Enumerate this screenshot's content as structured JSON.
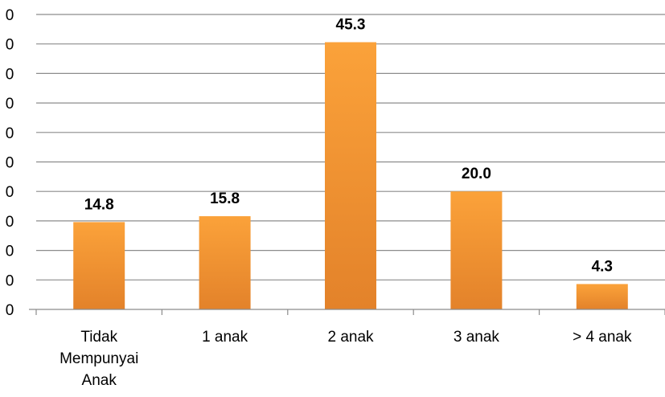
{
  "chart_data": {
    "type": "bar",
    "categories": [
      [
        "Tidak",
        "Mempunyai",
        "Anak"
      ],
      [
        "1 anak"
      ],
      [
        "2 anak"
      ],
      [
        "3 anak"
      ],
      [
        "> 4 anak"
      ]
    ],
    "values": [
      14.8,
      15.8,
      45.3,
      20.0,
      4.3
    ],
    "data_labels": [
      "14.8",
      "15.8",
      "45.3",
      "20.0",
      "4.3"
    ],
    "ylim": [
      0,
      50
    ],
    "y_ticks": [
      0,
      5,
      10,
      15,
      20,
      25,
      30,
      35,
      40,
      45,
      50
    ],
    "y_tick_labels": [
      "0",
      "0",
      "0",
      "0",
      "0",
      "0",
      "0",
      "0",
      "0",
      "0",
      "0"
    ],
    "grid": true,
    "legend": "none",
    "bar_color_top": "#FBA23A",
    "bar_color_bottom": "#E3822A",
    "grid_color": "#8c8c8c"
  }
}
